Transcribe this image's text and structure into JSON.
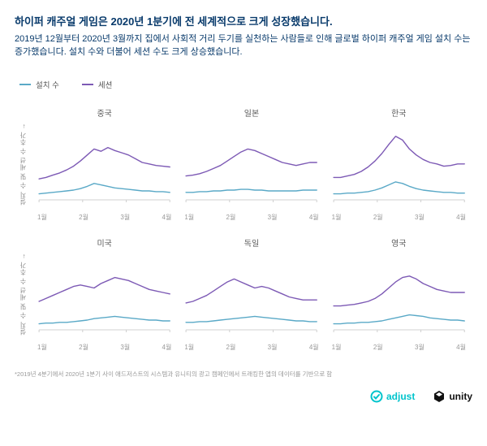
{
  "title": "하이퍼 캐주얼 게임은 2020년 1분기에 전 세계적으로 크게 성장했습니다.",
  "subtitle": "2019년 12월부터 2020년 3월까지 집에서 사회적 거리 두기를 실천하는 사람들로 인해 글로벌 하이퍼 캐주얼 게임 설치 수는 증가했습니다. 설치 수와 더불어 세션 수도 크게 상승했습니다.",
  "legend": {
    "installs": {
      "label": "설치 수",
      "color": "#5aa9c7"
    },
    "sessions": {
      "label": "세션",
      "color": "#7d5ab5"
    }
  },
  "y_axis_label": "설치 수 및 세션 수 추가 →",
  "x_ticks": [
    "1월",
    "2월",
    "3월",
    "4월"
  ],
  "plot": {
    "width_units": 100,
    "height_units": 100,
    "ylim": [
      0,
      100
    ],
    "line_width": 1.4,
    "axis_color": "#d0d0d0",
    "grid": false
  },
  "colors": {
    "background": "#ffffff",
    "title_text": "#083a6b",
    "tick_text": "#999999"
  },
  "panels": [
    {
      "title": "중국",
      "installs": [
        8,
        9,
        10,
        11,
        12,
        13,
        15,
        18,
        22,
        20,
        18,
        16,
        15,
        14,
        13,
        12,
        12,
        11,
        11,
        10
      ],
      "sessions": [
        28,
        30,
        33,
        36,
        40,
        45,
        52,
        60,
        68,
        65,
        70,
        66,
        63,
        60,
        55,
        50,
        48,
        46,
        45,
        44
      ]
    },
    {
      "title": "일본",
      "installs": [
        10,
        10,
        11,
        11,
        12,
        12,
        13,
        13,
        14,
        14,
        13,
        13,
        12,
        12,
        12,
        12,
        12,
        13,
        13,
        13
      ],
      "sessions": [
        32,
        33,
        35,
        38,
        42,
        46,
        52,
        58,
        64,
        68,
        66,
        62,
        58,
        54,
        50,
        48,
        46,
        48,
        50,
        50
      ]
    },
    {
      "title": "한국",
      "installs": [
        8,
        8,
        9,
        9,
        10,
        11,
        13,
        16,
        20,
        24,
        22,
        18,
        15,
        13,
        12,
        11,
        10,
        10,
        9,
        9
      ],
      "sessions": [
        30,
        30,
        32,
        34,
        38,
        44,
        52,
        62,
        74,
        85,
        80,
        68,
        60,
        54,
        50,
        48,
        45,
        46,
        48,
        48
      ]
    },
    {
      "title": "미국",
      "installs": [
        8,
        9,
        9,
        10,
        10,
        11,
        12,
        13,
        15,
        16,
        17,
        18,
        17,
        16,
        15,
        14,
        13,
        13,
        12,
        12
      ],
      "sessions": [
        38,
        42,
        46,
        50,
        54,
        58,
        60,
        58,
        56,
        62,
        66,
        70,
        68,
        66,
        62,
        58,
        54,
        52,
        50,
        48
      ]
    },
    {
      "title": "독일",
      "installs": [
        10,
        10,
        11,
        11,
        12,
        13,
        14,
        15,
        16,
        17,
        18,
        17,
        16,
        15,
        14,
        13,
        12,
        12,
        11,
        11
      ],
      "sessions": [
        36,
        38,
        42,
        46,
        52,
        58,
        64,
        68,
        64,
        60,
        56,
        58,
        56,
        52,
        48,
        44,
        42,
        40,
        40,
        40
      ]
    },
    {
      "title": "영국",
      "installs": [
        8,
        8,
        9,
        9,
        10,
        10,
        11,
        12,
        14,
        16,
        18,
        20,
        19,
        18,
        16,
        15,
        14,
        13,
        13,
        12
      ],
      "sessions": [
        32,
        32,
        33,
        34,
        36,
        38,
        42,
        48,
        56,
        64,
        70,
        72,
        68,
        62,
        58,
        54,
        52,
        50,
        50,
        50
      ]
    }
  ],
  "footnote": "*2019년 4분기에서 2020년 1분기 사이 애드저스트의 시스템과 유니티의 광고 캠페인에서 트래킹한 앱의 데이터를 기반으로 함",
  "logos": {
    "adjust": "adjust",
    "unity": "unity"
  }
}
